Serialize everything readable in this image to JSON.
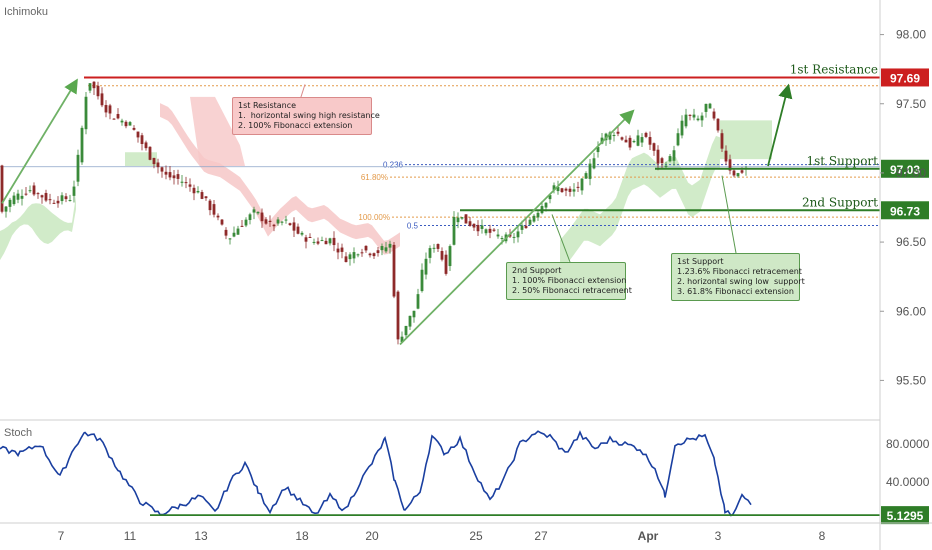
{
  "indicator_label": "Ichimoku",
  "stoch_label": "Stoch",
  "chart_data": {
    "type": "candlestick",
    "price_axis": {
      "ticks": [
        95.5,
        96.0,
        96.5,
        97.0,
        97.5,
        98.0
      ],
      "tick_labels": [
        "95.50",
        "96.00",
        "96.50",
        "97.00",
        "97.50",
        "98.00"
      ],
      "range": [
        95.25,
        98.25
      ]
    },
    "x_axis": {
      "labels": [
        "7",
        "11",
        "13",
        "18",
        "20",
        "25",
        "27",
        "Apr",
        "3",
        "8"
      ]
    },
    "stoch_axis": {
      "tick_labels": [
        "80.0000",
        "40.0000"
      ],
      "range": [
        0,
        100
      ]
    },
    "levels": [
      {
        "name": "1st Resistance",
        "value": 97.69,
        "label": "97.69",
        "color": "#cc1f1f"
      },
      {
        "name": "1st Support",
        "value": 97.03,
        "label": "97.03",
        "color": "#2e7d27"
      },
      {
        "name": "2nd Support",
        "value": 96.73,
        "label": "96.73",
        "color": "#2e7d27"
      }
    ],
    "fib_labels": [
      "0.236",
      "61.80%",
      "100.00%",
      "0.5"
    ],
    "stoch_level": {
      "label": "5.1295",
      "color": "#2e7d27"
    },
    "annotations": [
      {
        "id": "res1",
        "lines": [
          "1st Resistance",
          "1.  horizontal swing high resistance",
          "2. 100% Fibonacci extension"
        ]
      },
      {
        "id": "sup2",
        "lines": [
          "2nd Support",
          "1. 100% Fibonacci extension",
          "2. 50% Fibonacci retracement"
        ]
      },
      {
        "id": "sup1",
        "lines": [
          "1st Support",
          "1.23.6% Fibonacci retracement",
          "2. horizontal swing low  support",
          "3. 61.8% Fibonacci extension"
        ]
      }
    ],
    "colors": {
      "up": "#3a8a3a",
      "down": "#8e2a2a",
      "stoch": "#1a3fa0",
      "cloud_bull": "#c9e8c0",
      "cloud_bear": "#f6c7c7"
    }
  }
}
